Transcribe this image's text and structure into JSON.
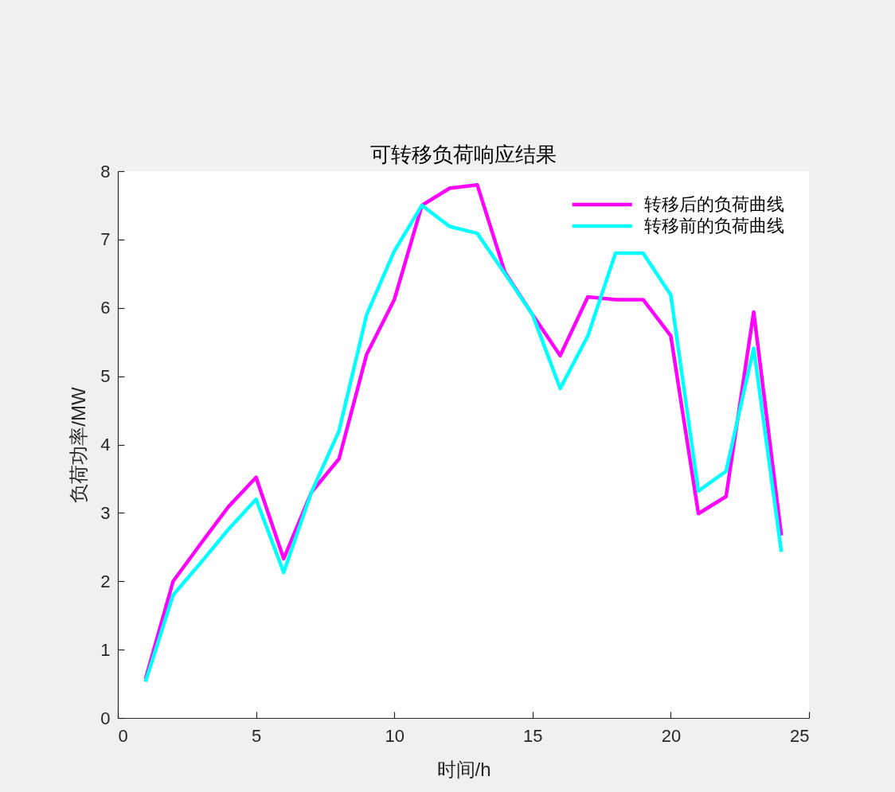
{
  "chart_data": {
    "type": "line",
    "title": "可转移负荷响应结果",
    "xlabel": "时间/h",
    "ylabel": "负荷功率/MW",
    "x": [
      1,
      2,
      3,
      4,
      5,
      6,
      7,
      8,
      9,
      10,
      11,
      12,
      13,
      14,
      15,
      16,
      17,
      18,
      19,
      20,
      21,
      22,
      23,
      24
    ],
    "series": [
      {
        "name": "转移后的负荷曲线",
        "color": "#ff00ff",
        "values": [
          0.57,
          2.0,
          2.55,
          3.09,
          3.52,
          2.33,
          3.3,
          3.79,
          5.32,
          6.12,
          7.5,
          7.75,
          7.8,
          6.52,
          5.9,
          5.3,
          6.16,
          6.12,
          6.12,
          5.59,
          2.99,
          3.24,
          5.94,
          2.67
        ]
      },
      {
        "name": "转移前的负荷曲线",
        "color": "#00ffff",
        "values": [
          0.53,
          1.8,
          2.27,
          2.76,
          3.2,
          2.13,
          3.3,
          4.2,
          5.9,
          6.83,
          7.5,
          7.19,
          7.09,
          6.5,
          5.9,
          4.82,
          5.59,
          6.8,
          6.8,
          6.19,
          3.32,
          3.61,
          5.41,
          2.43
        ]
      }
    ],
    "xlim": [
      0,
      25
    ],
    "xticks": [
      0,
      5,
      10,
      15,
      20,
      25
    ],
    "ylim": [
      0,
      8
    ],
    "yticks": [
      0,
      1,
      2,
      3,
      4,
      5,
      6,
      7,
      8
    ],
    "legend": "top right",
    "line_style": "solid"
  }
}
